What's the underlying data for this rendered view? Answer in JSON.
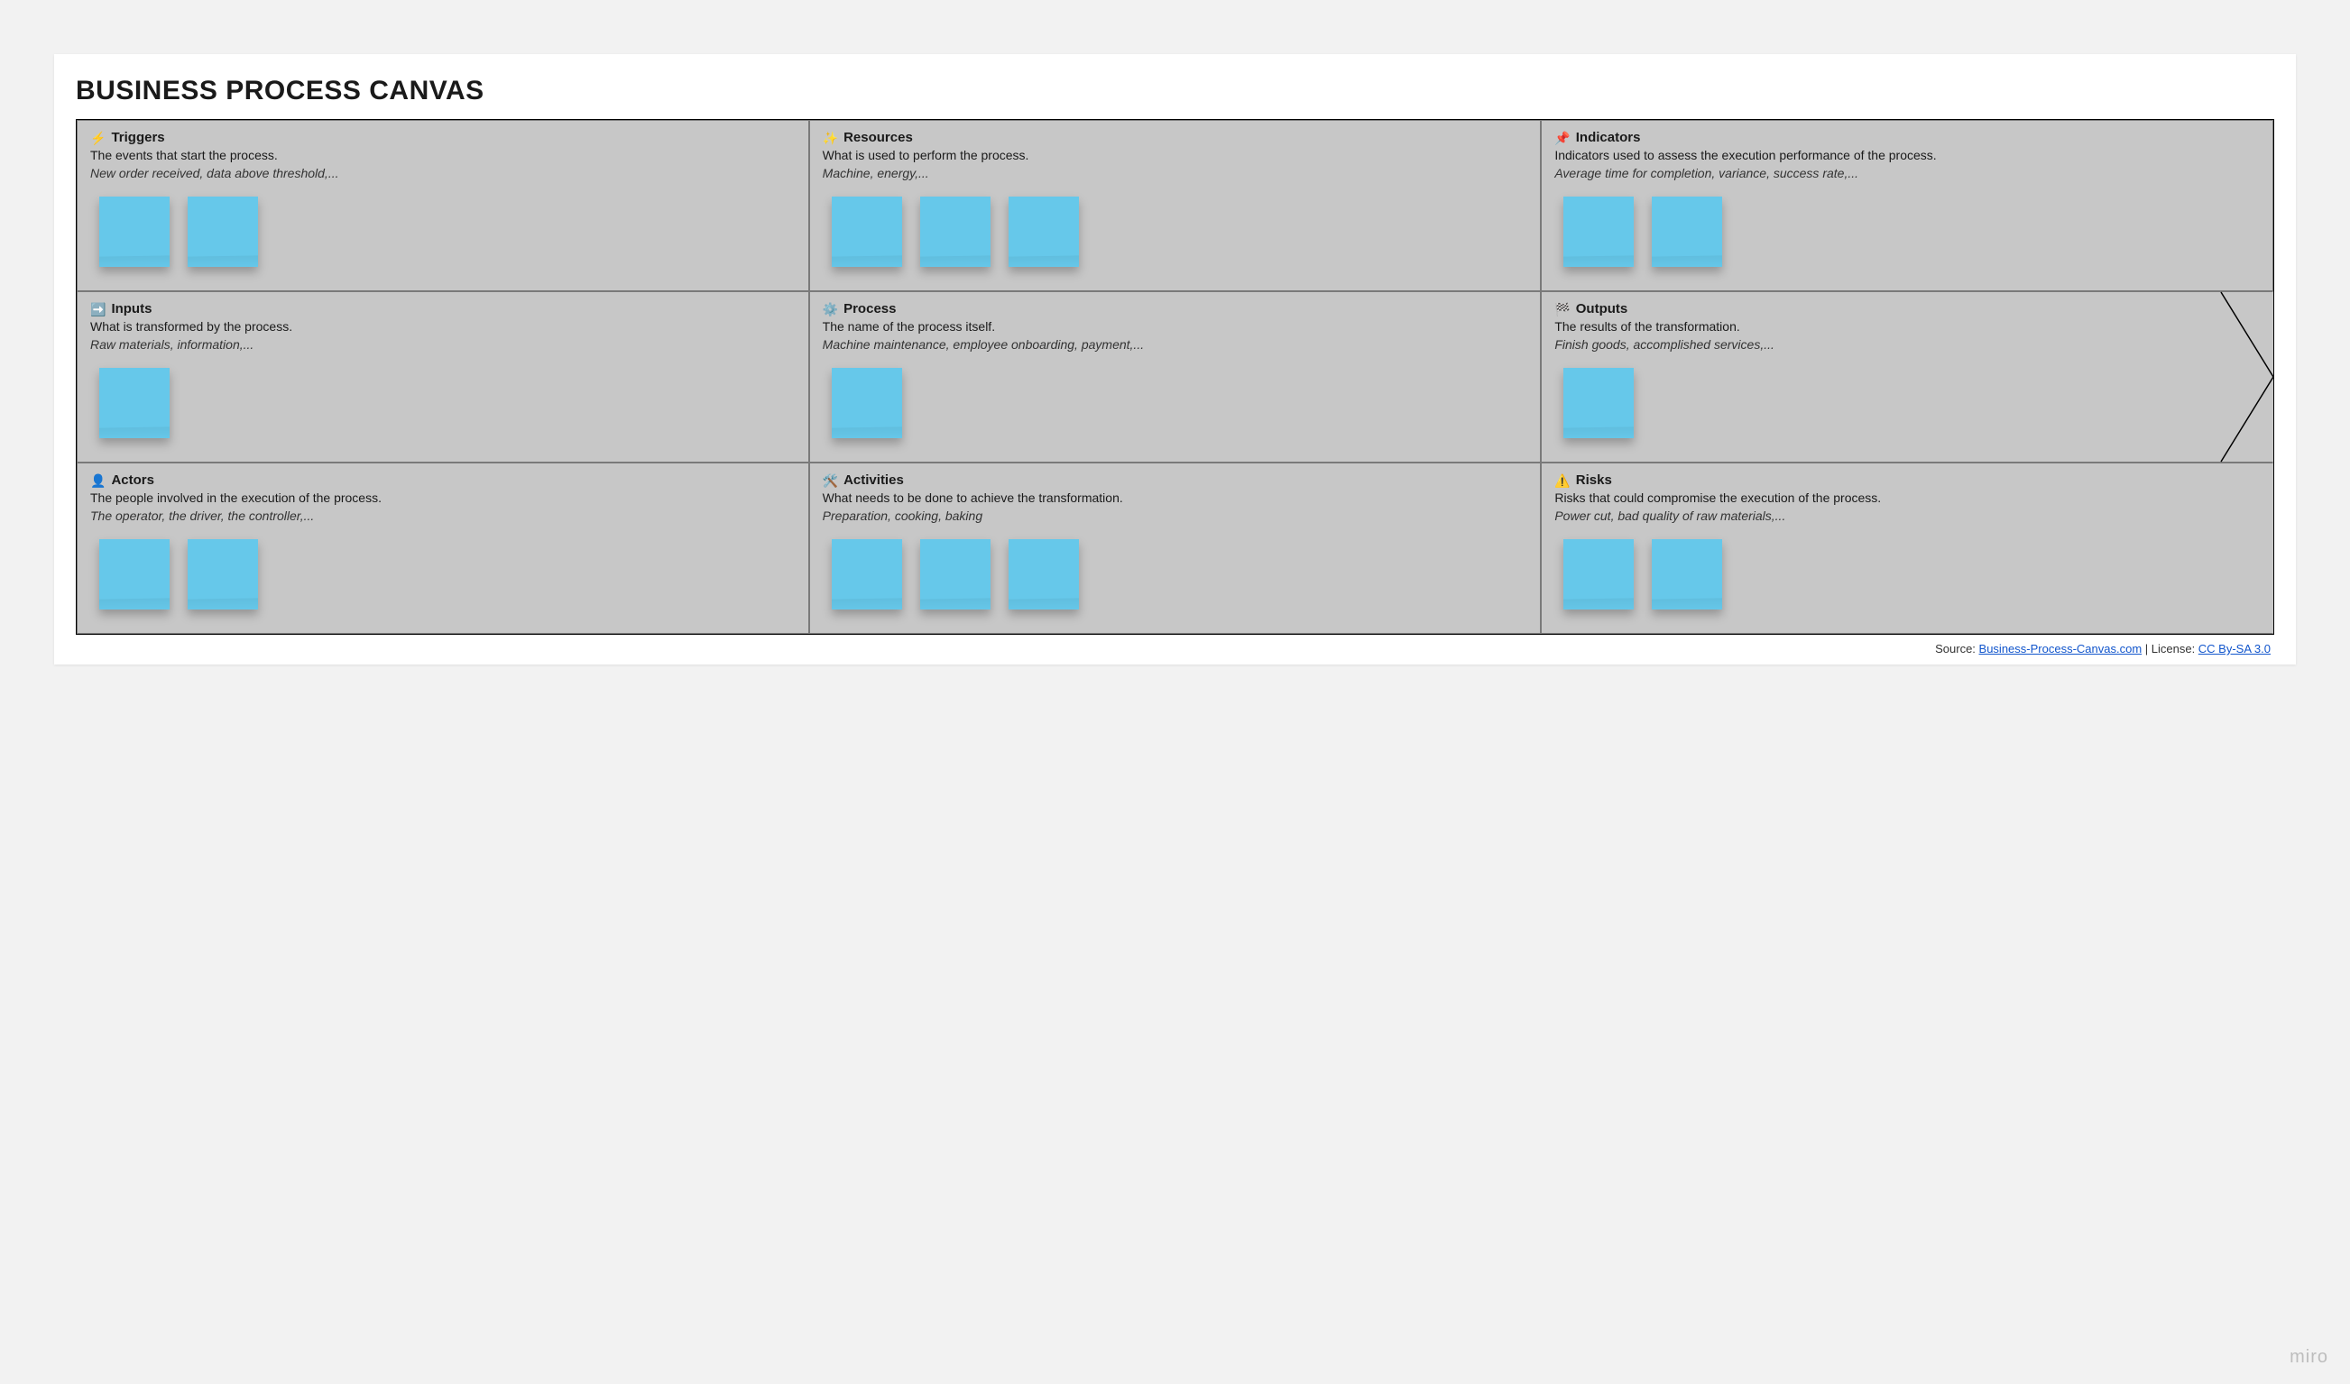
{
  "title": "BUSINESS PROCESS CANVAS",
  "colors": {
    "page_bg": "#f2f2f2",
    "card_bg": "#ffffff",
    "middle_row_bg": "#c7c7c7",
    "cell_border": "#7a7a7a",
    "outer_border": "#000000",
    "sticky": "#66c8ea",
    "link": "#1155cc",
    "watermark": "#bdbdbd"
  },
  "layout": {
    "rows": 3,
    "cols": 3,
    "middle_row_has_arrow": true
  },
  "cells": [
    {
      "id": "triggers",
      "row": 0,
      "col": 0,
      "icon": "⚡",
      "title": "Triggers",
      "desc": "The events that start the process.",
      "examples": "New order received, data above threshold,...",
      "sticky_count": 2
    },
    {
      "id": "resources",
      "row": 0,
      "col": 1,
      "icon": "✨",
      "title": "Resources",
      "desc": "What is used to perform the process.",
      "examples": "Machine, energy,...",
      "sticky_count": 3
    },
    {
      "id": "indicators",
      "row": 0,
      "col": 2,
      "icon": "📌",
      "title": "Indicators",
      "desc": "Indicators used to assess the execution performance of the process.",
      "examples": "Average time for completion, variance, success rate,...",
      "sticky_count": 2
    },
    {
      "id": "inputs",
      "row": 1,
      "col": 0,
      "icon": "➡️",
      "title": "Inputs",
      "desc": "What is transformed by the process.",
      "examples": "Raw materials, information,...",
      "sticky_count": 1
    },
    {
      "id": "process",
      "row": 1,
      "col": 1,
      "icon": "⚙️",
      "title": "Process",
      "desc": "The name of the process itself.",
      "examples": "Machine maintenance, employee onboarding, payment,...",
      "sticky_count": 1
    },
    {
      "id": "outputs",
      "row": 1,
      "col": 2,
      "icon": "🏁",
      "title": "Outputs",
      "desc": "The results of the transformation.",
      "examples": "Finish goods, accomplished services,...",
      "sticky_count": 1
    },
    {
      "id": "actors",
      "row": 2,
      "col": 0,
      "icon": "👤",
      "title": "Actors",
      "desc": "The people involved in the execution of the process.",
      "examples": "The operator, the driver, the controller,...",
      "sticky_count": 2
    },
    {
      "id": "activities",
      "row": 2,
      "col": 1,
      "icon": "🛠️",
      "title": "Activities",
      "desc": "What needs to be done to achieve the transformation.",
      "examples": "Preparation, cooking, baking",
      "sticky_count": 3
    },
    {
      "id": "risks",
      "row": 2,
      "col": 2,
      "icon": "⚠️",
      "title": "Risks",
      "desc": "Risks that could compromise the execution of the process.",
      "examples": "Power cut, bad quality of raw materials,...",
      "sticky_count": 2
    }
  ],
  "footer": {
    "source_label": "Source: ",
    "source_link_text": "Business-Process-Canvas.com",
    "separator": " | License: ",
    "license_link_text": "CC By-SA 3.0"
  },
  "watermark": "miro"
}
